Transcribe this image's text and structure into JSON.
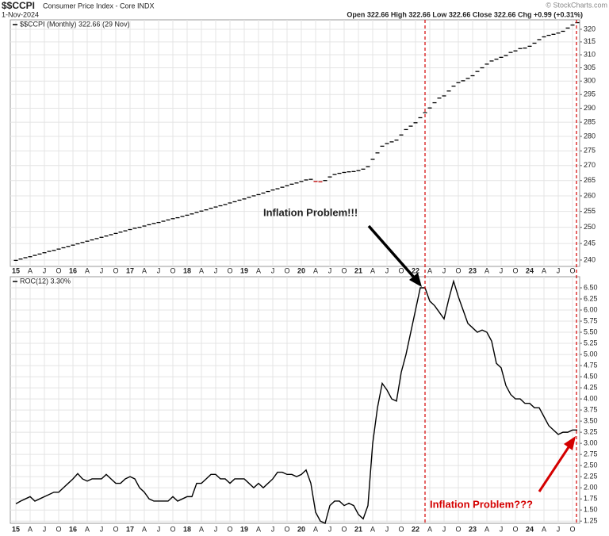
{
  "header": {
    "symbol": "$$CCPI",
    "name": "Consumer Price Index - Core INDX",
    "date": "1-Nov-2024",
    "quote": "Open 322.66 High 322.66 Low 322.66 Close 322.66 Chg +0.99 (+0.31%)",
    "copyright": "© StockCharts.com"
  },
  "annotations": [
    "Inflation Problem!!!",
    "Inflation Problem???"
  ],
  "chart_data": [
    {
      "type": "dash",
      "log": true,
      "grid": true,
      "color": "#000000",
      "down_color": "#c00000",
      "categories": [
        "15",
        null,
        null,
        "A",
        null,
        null,
        "J",
        null,
        null,
        "O",
        null,
        null,
        "16",
        null,
        null,
        "A",
        null,
        null,
        "J",
        null,
        null,
        "O",
        null,
        null,
        "17",
        null,
        null,
        "A",
        null,
        null,
        "J",
        null,
        null,
        "O",
        null,
        null,
        "18",
        null,
        null,
        "A",
        null,
        null,
        "J",
        null,
        null,
        "O",
        null,
        null,
        "19",
        null,
        null,
        "A",
        null,
        null,
        "J",
        null,
        null,
        "O",
        null,
        null,
        "20",
        null,
        null,
        "A",
        null,
        null,
        "J",
        null,
        null,
        "O",
        null,
        null,
        "21",
        null,
        null,
        "A",
        null,
        null,
        "J",
        null,
        null,
        "O",
        null,
        null,
        "22",
        null,
        null,
        "A",
        null,
        null,
        "J",
        null,
        null,
        "O",
        null,
        null,
        "23",
        null,
        null,
        "A",
        null,
        null,
        "J",
        null,
        null,
        "O",
        null,
        null,
        "24",
        null,
        null,
        "A",
        null,
        null,
        "J",
        null,
        null,
        "O",
        null
      ],
      "series": [
        {
          "name": "$$CCPI (Monthly) 322.66 (29 Nov)",
          "values": [
            239.9,
            240.3,
            240.7,
            241.0,
            241.4,
            241.8,
            242.2,
            242.6,
            242.9,
            243.3,
            243.7,
            244.1,
            244.5,
            244.9,
            245.3,
            245.7,
            246.1,
            246.5,
            246.9,
            247.3,
            247.7,
            248.1,
            248.5,
            248.9,
            249.3,
            249.7,
            250.0,
            250.4,
            250.8,
            251.2,
            251.5,
            251.9,
            252.3,
            252.7,
            253.0,
            253.4,
            253.8,
            254.2,
            254.7,
            255.1,
            255.5,
            256.0,
            256.4,
            256.8,
            257.2,
            257.7,
            258.1,
            258.6,
            259.0,
            259.5,
            260.0,
            260.4,
            260.9,
            261.4,
            261.9,
            262.3,
            262.8,
            263.3,
            263.8,
            264.2,
            264.7,
            265.2,
            265.4,
            264.7,
            264.6,
            265.0,
            266.2,
            267.0,
            267.4,
            267.7,
            267.9,
            268.0,
            268.3,
            268.8,
            269.6,
            272.1,
            274.3,
            276.6,
            277.5,
            278.1,
            278.7,
            280.5,
            282.4,
            283.6,
            284.8,
            286.6,
            288.4,
            290.1,
            292.0,
            293.7,
            294.5,
            296.3,
            298.1,
            299.4,
            300.1,
            301.0,
            302.0,
            303.6,
            305.0,
            306.4,
            307.6,
            308.3,
            309.0,
            309.7,
            310.9,
            311.5,
            312.4,
            312.6,
            313.3,
            314.5,
            315.9,
            317.0,
            317.6,
            318.0,
            318.5,
            319.2,
            320.5,
            321.7,
            322.66
          ]
        }
      ],
      "ylim": [
        238.1,
        323.8
      ],
      "yticks": [
        240,
        245,
        250,
        255,
        260,
        265,
        270,
        275,
        280,
        285,
        290,
        295,
        300,
        305,
        310,
        315,
        320
      ]
    },
    {
      "type": "line",
      "grid": true,
      "categories": [
        "15",
        null,
        null,
        "A",
        null,
        null,
        "J",
        null,
        null,
        "O",
        null,
        null,
        "16",
        null,
        null,
        "A",
        null,
        null,
        "J",
        null,
        null,
        "O",
        null,
        null,
        "17",
        null,
        null,
        "A",
        null,
        null,
        "J",
        null,
        null,
        "O",
        null,
        null,
        "18",
        null,
        null,
        "A",
        null,
        null,
        "J",
        null,
        null,
        "O",
        null,
        null,
        "19",
        null,
        null,
        "A",
        null,
        null,
        "J",
        null,
        null,
        "O",
        null,
        null,
        "20",
        null,
        null,
        "A",
        null,
        null,
        "J",
        null,
        null,
        "O",
        null,
        null,
        "21",
        null,
        null,
        "A",
        null,
        null,
        "J",
        null,
        null,
        "O",
        null,
        null,
        "22",
        null,
        null,
        "A",
        null,
        null,
        "J",
        null,
        null,
        "O",
        null,
        null,
        "23",
        null,
        null,
        "A",
        null,
        null,
        "J",
        null,
        null,
        "O",
        null,
        null,
        "24",
        null,
        null,
        "A",
        null,
        null,
        "J",
        null,
        null,
        "O",
        null
      ],
      "series": [
        {
          "name": "ROC(12) 3.30%",
          "color": "#000000",
          "values": [
            1.64,
            1.7,
            1.75,
            1.8,
            1.7,
            1.75,
            1.8,
            1.85,
            1.9,
            1.9,
            2.0,
            2.1,
            2.2,
            2.32,
            2.2,
            2.15,
            2.2,
            2.2,
            2.2,
            2.3,
            2.2,
            2.1,
            2.1,
            2.2,
            2.25,
            2.2,
            2.0,
            1.9,
            1.75,
            1.7,
            1.7,
            1.7,
            1.7,
            1.8,
            1.7,
            1.75,
            1.8,
            1.8,
            2.1,
            2.1,
            2.2,
            2.3,
            2.3,
            2.2,
            2.2,
            2.1,
            2.2,
            2.2,
            2.2,
            2.1,
            2.0,
            2.1,
            2.0,
            2.1,
            2.2,
            2.35,
            2.35,
            2.3,
            2.3,
            2.25,
            2.3,
            2.4,
            2.1,
            1.45,
            1.25,
            1.2,
            1.6,
            1.7,
            1.7,
            1.6,
            1.65,
            1.6,
            1.4,
            1.3,
            1.6,
            3.0,
            3.8,
            4.35,
            4.2,
            4.0,
            3.95,
            4.6,
            5.0,
            5.5,
            6.0,
            6.5,
            6.5,
            6.2,
            6.1,
            5.95,
            5.8,
            6.25,
            6.65,
            6.3,
            6.0,
            5.7,
            5.6,
            5.5,
            5.55,
            5.5,
            5.3,
            4.8,
            4.7,
            4.3,
            4.1,
            4.0,
            4.0,
            3.9,
            3.9,
            3.8,
            3.8,
            3.6,
            3.4,
            3.3,
            3.2,
            3.25,
            3.25,
            3.3,
            3.3
          ]
        }
      ],
      "ylim": [
        1.2,
        6.75
      ],
      "yticks": [
        1.25,
        {
          "value": 1.5,
          "label": "1.50"
        },
        1.75,
        {
          "value": 2,
          "label": "2.00"
        },
        2.25,
        {
          "value": 2.5,
          "label": "2.50"
        },
        2.75,
        {
          "value": 3,
          "label": "3.00"
        },
        3.25,
        {
          "value": 3.5,
          "label": "3.50"
        },
        3.75,
        {
          "value": 4,
          "label": "4.00"
        },
        4.25,
        {
          "value": 4.5,
          "label": "4.50"
        },
        4.75,
        {
          "value": 5,
          "label": "5.00"
        },
        5.25,
        {
          "value": 5.5,
          "label": "5.50"
        },
        5.75,
        {
          "value": 6,
          "label": "6.00"
        },
        6.25,
        {
          "value": 6.5,
          "label": "6.50"
        }
      ]
    }
  ]
}
